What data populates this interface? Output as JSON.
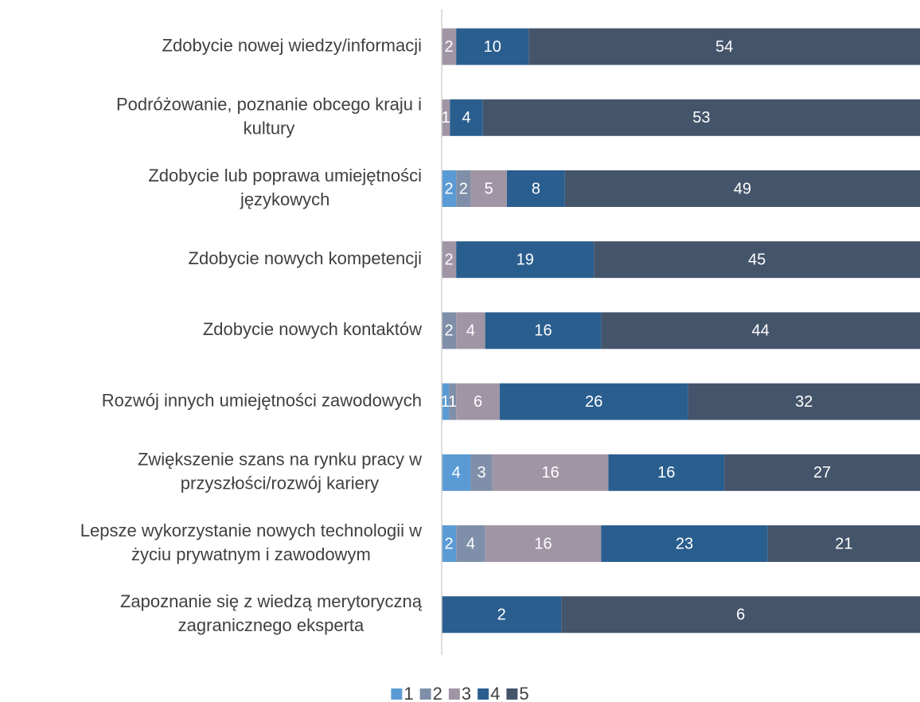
{
  "chart_data": {
    "type": "stacked100_barh",
    "categories": [
      [
        "Zdobycie nowej wiedzy/informacji"
      ],
      [
        "Podróżowanie, poznanie obcego kraju i",
        "kultury"
      ],
      [
        "Zdobycie lub poprawa umiejętności",
        "językowych"
      ],
      [
        "Zdobycie nowych kompetencji"
      ],
      [
        "Zdobycie nowych kontaktów"
      ],
      [
        "Rozwój innych umiejętności zawodowych"
      ],
      [
        "Zwiększenie szans na rynku pracy w",
        "przyszłości/rozwój kariery"
      ],
      [
        "Lepsze wykorzystanie nowych technologii w",
        "życiu prywatnym i zawodowym"
      ],
      [
        "Zapoznanie się z wiedzą merytoryczną",
        "zagranicznego eksperta"
      ]
    ],
    "series": [
      {
        "name": "1",
        "color": "#5b9bd5",
        "values": [
          null,
          null,
          2,
          null,
          null,
          1,
          4,
          2,
          null
        ]
      },
      {
        "name": "2",
        "color": "#7f8fa9",
        "values": [
          null,
          null,
          2,
          null,
          2,
          1,
          3,
          4,
          null
        ]
      },
      {
        "name": "3",
        "color": "#a095a5",
        "values": [
          2,
          1,
          5,
          2,
          4,
          6,
          16,
          16,
          null
        ]
      },
      {
        "name": "4",
        "color": "#2a5e8f",
        "values": [
          10,
          4,
          8,
          19,
          16,
          26,
          16,
          23,
          2
        ]
      },
      {
        "name": "5",
        "color": "#44546a",
        "values": [
          54,
          53,
          49,
          45,
          44,
          32,
          27,
          21,
          6
        ]
      }
    ],
    "legend": "bottom"
  }
}
